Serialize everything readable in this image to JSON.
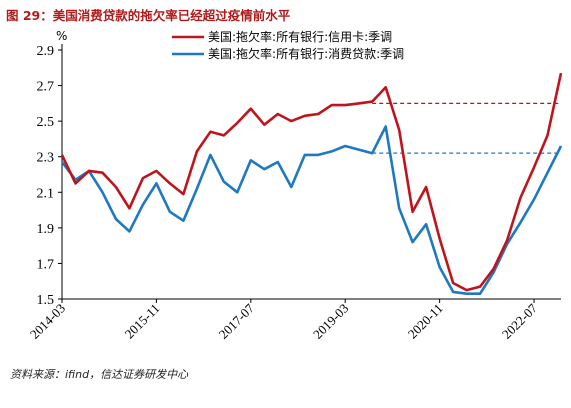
{
  "figure": {
    "title": "图 29：美国消费贷款的拖欠率已经超过疫情前水平",
    "source": "资料来源：ifind，信达证券研发中心"
  },
  "colors": {
    "series1": "#c0141c",
    "series2": "#1e78c2",
    "title": "#b01a1a"
  },
  "chart_data": {
    "type": "line",
    "y_unit": "%",
    "ylim": [
      1.5,
      2.9
    ],
    "yticks": [
      1.5,
      1.7,
      1.9,
      2.1,
      2.3,
      2.5,
      2.7,
      2.9
    ],
    "xticks": [
      "2014-03",
      "2015-11",
      "2017-07",
      "2019-03",
      "2020-11",
      "2022-07"
    ],
    "xtick_index": [
      0,
      7,
      14,
      21,
      28,
      35
    ],
    "grid": false,
    "legend_position": "top-center",
    "series": [
      {
        "name": "美国:拖欠率:所有银行:信用卡:季调",
        "color": "#c0141c",
        "values": [
          2.31,
          2.15,
          2.22,
          2.21,
          2.13,
          2.01,
          2.18,
          2.22,
          2.15,
          2.09,
          2.33,
          2.44,
          2.42,
          2.49,
          2.57,
          2.48,
          2.54,
          2.5,
          2.53,
          2.54,
          2.59,
          2.59,
          2.6,
          2.61,
          2.69,
          2.45,
          1.99,
          2.13,
          1.84,
          1.59,
          1.55,
          1.57,
          1.67,
          1.83,
          2.07,
          2.24,
          2.42,
          2.77
        ],
        "reference_line": 2.6
      },
      {
        "name": "美国:拖欠率:所有银行:消费贷款:季调",
        "color": "#1e78c2",
        "values": [
          2.27,
          2.17,
          2.22,
          2.1,
          1.95,
          1.88,
          2.03,
          2.15,
          1.99,
          1.94,
          2.12,
          2.31,
          2.16,
          2.1,
          2.28,
          2.23,
          2.27,
          2.13,
          2.31,
          2.31,
          2.33,
          2.36,
          2.34,
          2.32,
          2.47,
          2.01,
          1.82,
          1.92,
          1.68,
          1.54,
          1.53,
          1.53,
          1.65,
          1.81,
          1.93,
          2.06,
          2.21,
          2.36
        ],
        "reference_line": 2.32
      }
    ]
  }
}
